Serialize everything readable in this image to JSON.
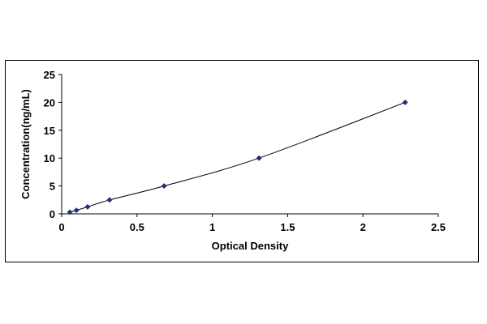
{
  "chart_data": {
    "type": "scatter",
    "title": "",
    "xlabel": "Optical Density",
    "ylabel": "Concentration(ng/mL)",
    "xlim": [
      0,
      2.5
    ],
    "ylim": [
      0,
      25
    ],
    "xticks": [
      0,
      0.5,
      1,
      1.5,
      2,
      2.5
    ],
    "yticks": [
      0,
      5,
      10,
      15,
      20,
      25
    ],
    "xtick_labels": [
      "0",
      "0.5",
      "1",
      "1.5",
      "2",
      "2.5"
    ],
    "ytick_labels": [
      "0",
      "5",
      "10",
      "15",
      "20",
      "25"
    ],
    "grid": false,
    "legend": "none",
    "series": [
      {
        "x": [
          0.054,
          0.098,
          0.172,
          0.318,
          0.68,
          1.31,
          2.28
        ],
        "y": [
          0.3,
          0.63,
          1.25,
          2.5,
          5,
          10,
          20
        ],
        "marker": "diamond",
        "color": "#1f2f7a",
        "line_style": "smooth",
        "line_color": "#000000"
      }
    ]
  }
}
